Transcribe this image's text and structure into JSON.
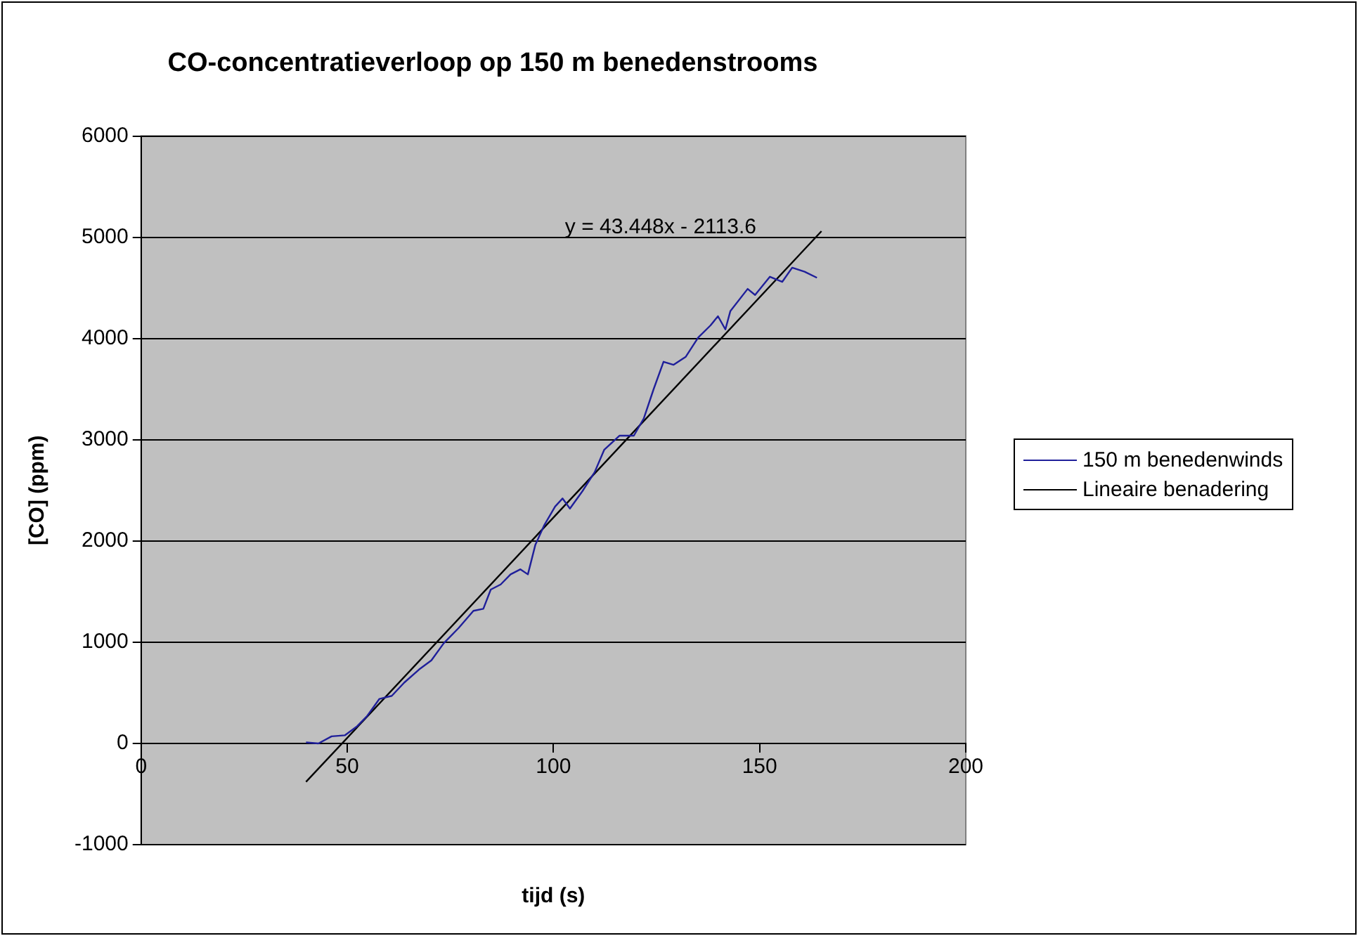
{
  "chart_data": {
    "type": "line",
    "title": "CO-concentratieverloop op 150 m benedenstrooms",
    "xlabel": "tijd (s)",
    "ylabel": "[CO] (ppm)",
    "xlim": [
      0,
      200
    ],
    "xticks": [
      0,
      50,
      100,
      150,
      200
    ],
    "ylim": [
      -1000,
      6000
    ],
    "yticks": [
      -1000,
      0,
      1000,
      2000,
      3000,
      4000,
      5000,
      6000
    ],
    "grid": "y",
    "legend": "right",
    "marker": "none",
    "line_style": "solid",
    "series": [
      {
        "name": "150 m benedenwinds",
        "color": "#1f1f9a",
        "x": [
          40,
          43,
          46.2,
          49.4,
          52.4,
          54.8,
          57.8,
          60.8,
          63.8,
          67.4,
          70.4,
          73.4,
          77,
          80.6,
          83,
          84.8,
          87.2,
          89.6,
          92,
          93.8,
          95.6,
          97.7,
          100.4,
          102.2,
          104,
          107,
          110,
          112.3,
          116,
          119.5,
          121.9,
          124.3,
          126.7,
          129.1,
          132.1,
          135.1,
          138.1,
          139.9,
          141.7,
          142.9,
          147.1,
          148.9,
          152.5,
          155.5,
          157.9,
          160.9,
          163.9
        ],
        "values": [
          10,
          0,
          70,
          80,
          170,
          270,
          440,
          470,
          600,
          730,
          820,
          990,
          1140,
          1310,
          1330,
          1520,
          1570,
          1670,
          1720,
          1670,
          1960,
          2150,
          2340,
          2420,
          2320,
          2490,
          2680,
          2900,
          3040,
          3040,
          3210,
          3500,
          3770,
          3740,
          3820,
          4010,
          4130,
          4220,
          4090,
          4270,
          4490,
          4430,
          4610,
          4560,
          4700,
          4660,
          4600
        ]
      },
      {
        "name": "Lineaire benadering",
        "color": "#000000",
        "x": [
          40,
          165
        ],
        "values": [
          -380,
          5060
        ]
      }
    ],
    "annotations": [
      "y = 43.448x - 2113.6"
    ]
  }
}
